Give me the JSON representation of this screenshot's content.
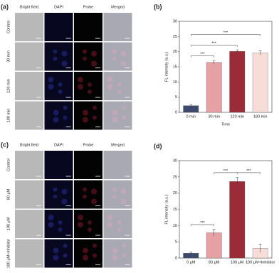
{
  "image_panels": [
    {
      "label": "(a)",
      "columns": [
        "Bright field",
        "DAPI",
        "Probe",
        "Merged"
      ],
      "rows": [
        "Control",
        "30 min",
        "120 min",
        "180 min"
      ]
    },
    {
      "label": "(c)",
      "columns": [
        "Bright field",
        "DAPI",
        "Probe",
        "Merged"
      ],
      "rows": [
        "Control",
        "80 μM",
        "100 μM",
        "100 μM+Inhibitor"
      ]
    }
  ],
  "chart_data": [
    {
      "type": "bar",
      "label": "(b)",
      "x_label": "Time",
      "y_label": "FL intensity (a.u.)",
      "categories": [
        "0 min",
        "30 min",
        "120 min",
        "180 min"
      ],
      "values": [
        2.2,
        16.5,
        20.1,
        19.6
      ],
      "errors": [
        0.4,
        0.6,
        0.5,
        0.7
      ],
      "colors": [
        "#3d4a6e",
        "#e6a1a4",
        "#9a2b37",
        "#f7ddd8"
      ],
      "ylim": [
        0,
        30
      ],
      "yticks": [
        0,
        5,
        10,
        15,
        20,
        25,
        30
      ],
      "significance": [
        {
          "text": "***",
          "from": 0,
          "to": 1
        },
        {
          "text": "***",
          "from": 0,
          "to": 2
        },
        {
          "text": "***",
          "from": 0,
          "to": 3
        }
      ]
    },
    {
      "type": "bar",
      "label": "(d)",
      "y_label": "FL intensity (a.u.)",
      "categories": [
        "0 μM",
        "80 μM",
        "100 μM",
        "100 μM+Inhibitor"
      ],
      "values": [
        1.5,
        7.8,
        23.6,
        3.0
      ],
      "errors": [
        0.4,
        1.0,
        1.2,
        1.3
      ],
      "colors": [
        "#3d4a6e",
        "#e6a1a4",
        "#9a2b37",
        "#f7ddd8"
      ],
      "ylim": [
        0,
        30
      ],
      "yticks": [
        0,
        5,
        10,
        15,
        20,
        25,
        30
      ],
      "significance": [
        {
          "text": "***",
          "from": 0,
          "to": 1
        },
        {
          "text": "***",
          "from": 1,
          "to": 2
        },
        {
          "text": "***",
          "from": 2,
          "to": 3
        }
      ]
    }
  ]
}
